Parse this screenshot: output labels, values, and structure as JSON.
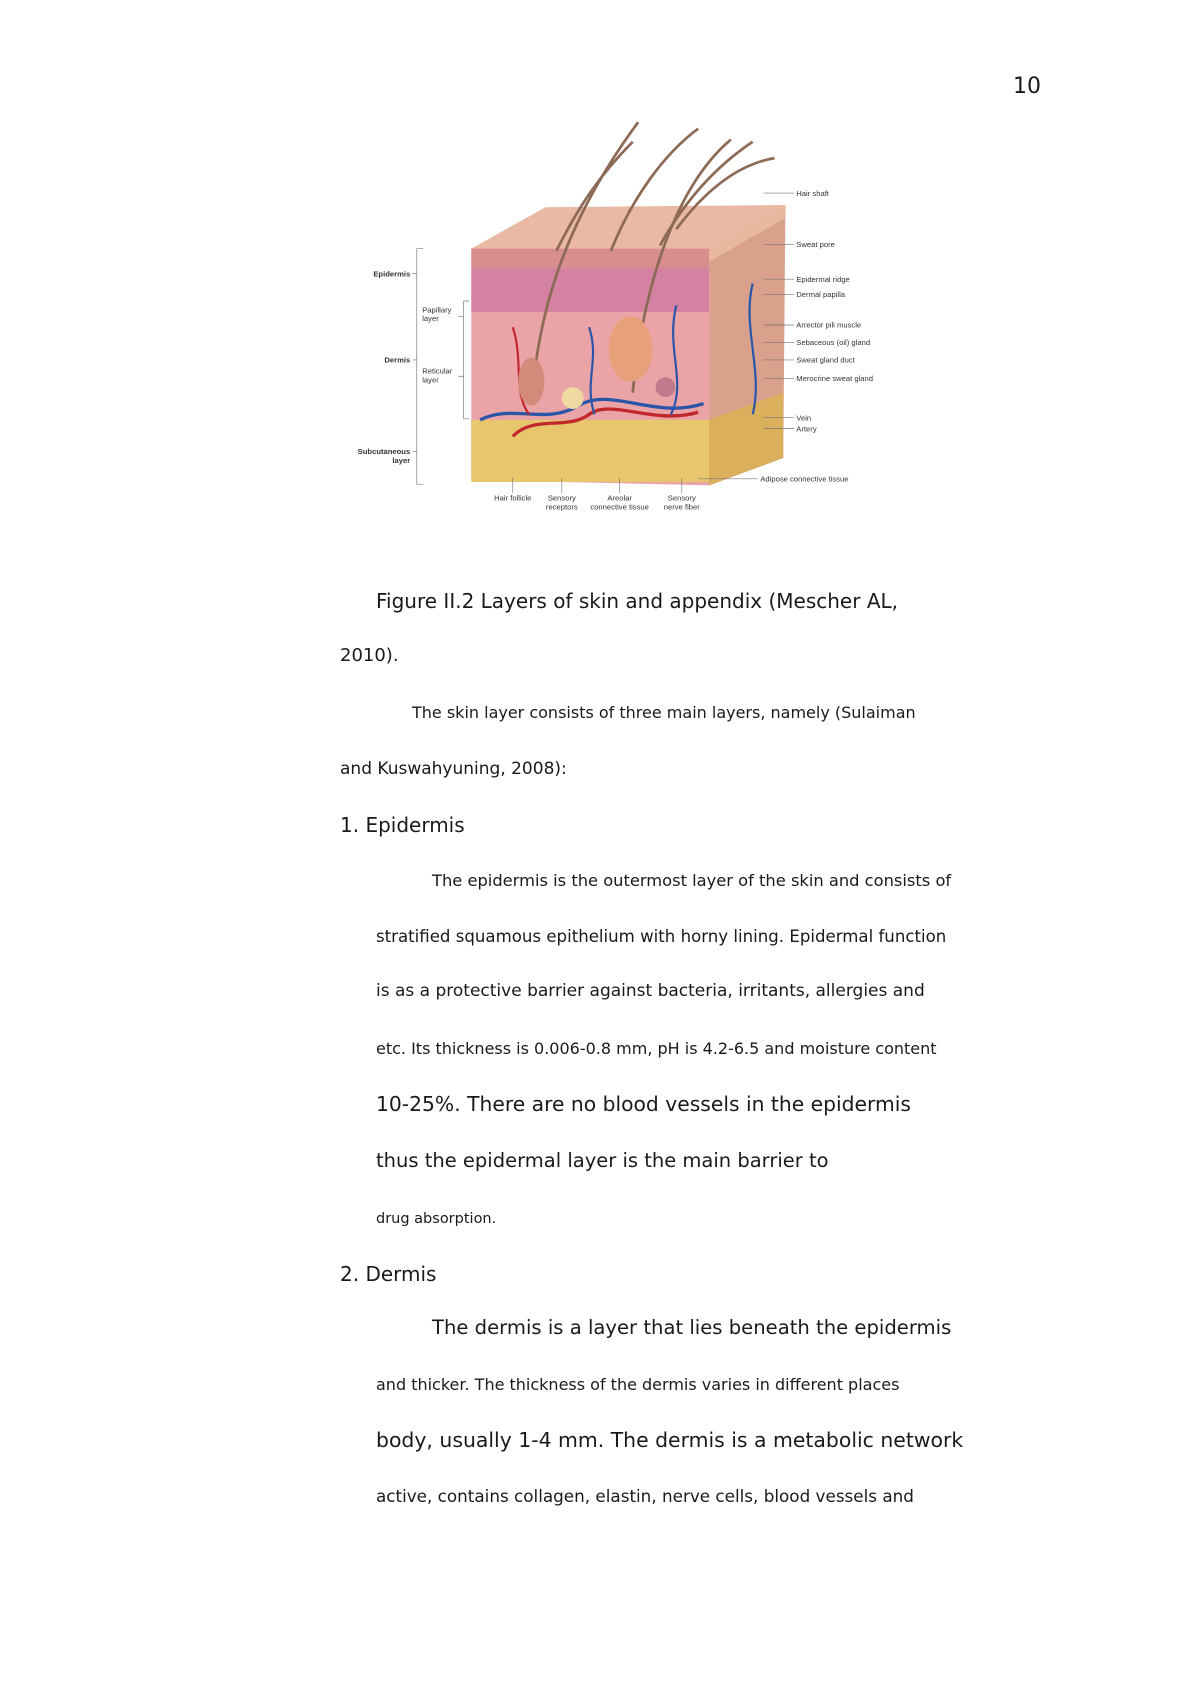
{
  "page_number": "10",
  "figure": {
    "labels_right": [
      "Hair shaft",
      "Sweat pore",
      "Epidermal ridge",
      "Dermal papilla",
      "Arrector pili muscle",
      "Sebaceous (oil) gland",
      "Sweat gland duct",
      "Merocrine sweat gland",
      "Vein",
      "Artery",
      "Adipose connective tissue"
    ],
    "labels_left": [
      [
        "Epidermis"
      ],
      [
        "Papillary",
        "layer"
      ],
      [
        "Dermis"
      ],
      [
        "Reticular",
        "layer"
      ],
      [
        "Subcutaneous",
        "layer"
      ]
    ],
    "labels_bottom": [
      [
        "Hair follicle"
      ],
      [
        "Sensory",
        "receptors"
      ],
      [
        "Areolar",
        "connective tissue"
      ],
      [
        "Sensory",
        "nerve fiber"
      ]
    ]
  },
  "body_lines": [
    "Figure II.2 Layers of skin and appendix (Mescher AL,",
    "2010).",
    "The skin layer consists of three main layers, namely (Sulaiman",
    "and Kuswahyuning, 2008):",
    "1. Epidermis",
    "The epidermis is the outermost layer of the skin and consists of",
    "stratified squamous epithelium with horny lining. Epidermal function",
    "is as a protective barrier against bacteria, irritants, allergies and",
    "etc. Its thickness is 0.006-0.8 mm, pH is 4.2-6.5 and moisture content",
    "10-25%. There are no blood vessels in the epidermis",
    "thus the epidermal layer is the main barrier to",
    "drug absorption.",
    "2. Dermis",
    "The dermis is a layer that lies beneath the epidermis",
    "and thicker. The thickness of the dermis varies in different places",
    "body, usually 1-4 mm. The dermis is a metabolic network",
    "active, contains collagen, elastin, nerve cells, blood vessels and"
  ]
}
